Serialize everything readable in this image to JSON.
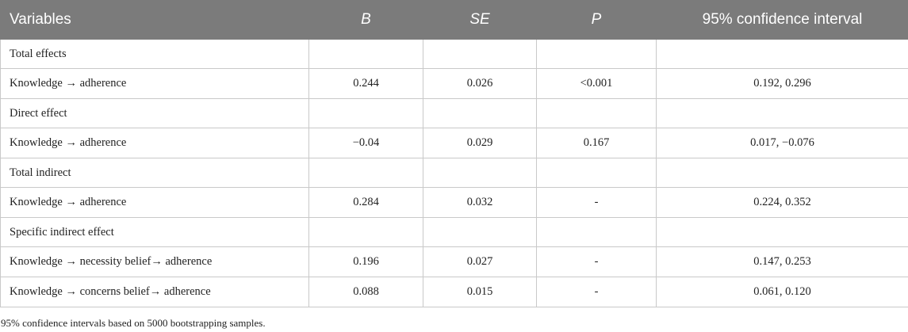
{
  "table": {
    "headers": [
      "Variables",
      "B",
      "SE",
      "P",
      "95% confidence interval"
    ],
    "rows": [
      {
        "type": "section",
        "label": "Total effects"
      },
      {
        "type": "data",
        "label": "Knowledge → adherence",
        "b": "0.244",
        "se": "0.026",
        "p": "<0.001",
        "ci": "0.192, 0.296"
      },
      {
        "type": "section",
        "label": "Direct effect"
      },
      {
        "type": "data",
        "label": "Knowledge → adherence",
        "b": "−0.04",
        "se": "0.029",
        "p": "0.167",
        "ci": "0.017, −0.076"
      },
      {
        "type": "section",
        "label": "Total indirect"
      },
      {
        "type": "data",
        "label": "Knowledge → adherence",
        "b": "0.284",
        "se": "0.032",
        "p": "-",
        "ci": "0.224, 0.352"
      },
      {
        "type": "section",
        "label": "Specific indirect effect"
      },
      {
        "type": "data",
        "label": "Knowledge → necessity belief→ adherence",
        "b": "0.196",
        "se": "0.027",
        "p": "-",
        "ci": "0.147, 0.253"
      },
      {
        "type": "data",
        "label": "Knowledge → concerns belief→ adherence",
        "b": "0.088",
        "se": "0.015",
        "p": "-",
        "ci": "0.061, 0.120"
      }
    ]
  },
  "footnote": "95% confidence intervals based on 5000 bootstrapping samples."
}
